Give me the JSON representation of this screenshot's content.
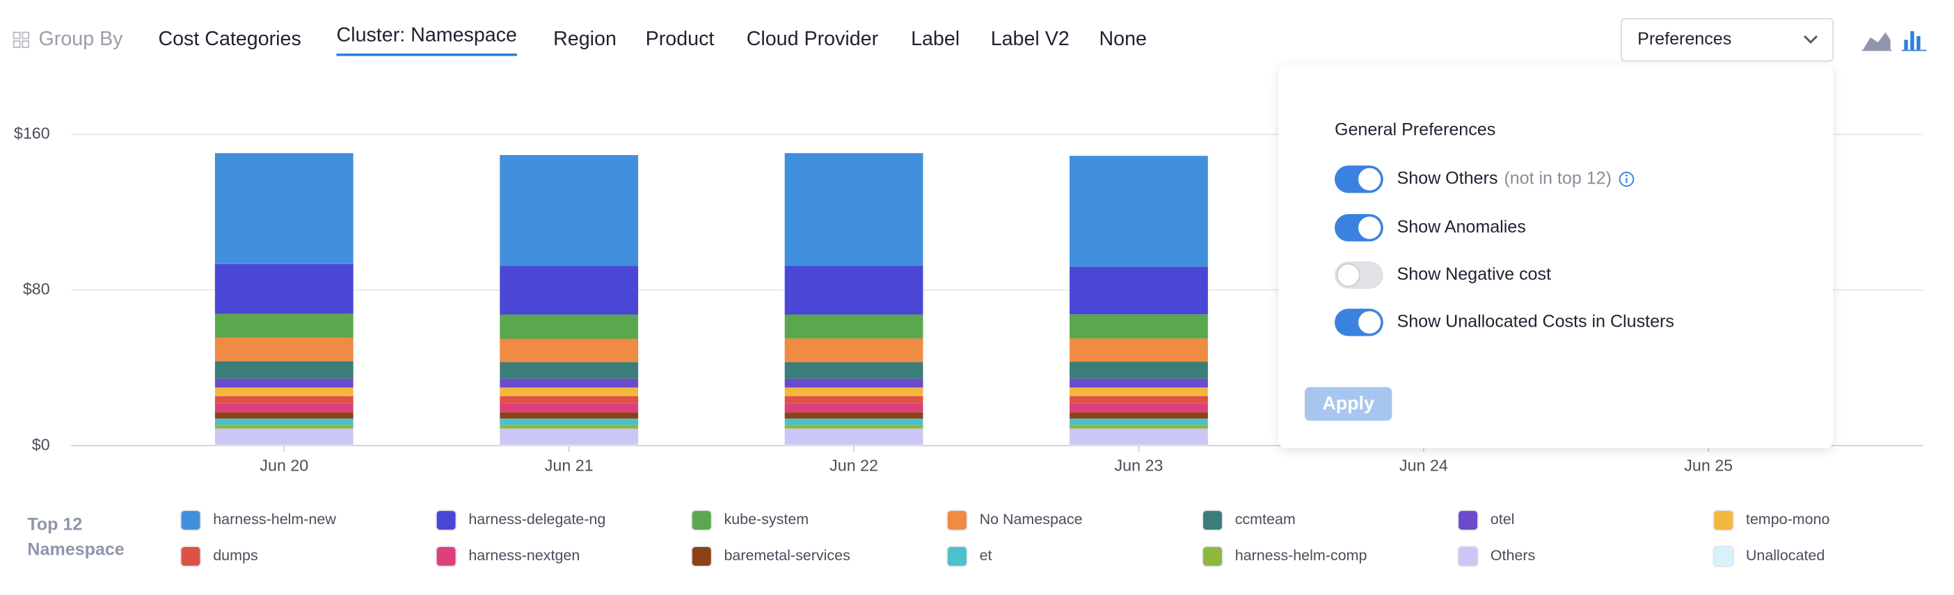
{
  "group_by_label": "Group By",
  "tabs": [
    "Cost Categories",
    "Cluster: Namespace",
    "Region",
    "Product",
    "Cloud Provider",
    "Label",
    "Label V2",
    "None"
  ],
  "active_tab": 1,
  "preferences": {
    "button": "Preferences",
    "title": "General Preferences",
    "toggles": [
      {
        "label": "Show Others",
        "note": "(not in top 12)",
        "on": true
      },
      {
        "label": "Show Anomalies",
        "on": true
      },
      {
        "label": "Show Negative cost",
        "on": false
      },
      {
        "label": "Show Unallocated Costs in Clusters",
        "on": true
      }
    ],
    "apply": "Apply"
  },
  "chart_data": {
    "type": "bar",
    "stacked": true,
    "categories": [
      "Jun 20",
      "Jun 21",
      "Jun 22",
      "Jun 23",
      "Jun 24",
      "Jun 25"
    ],
    "ylim": [
      0,
      160
    ],
    "yticks": [
      {
        "value": 0,
        "label": "$0"
      },
      {
        "value": 80,
        "label": "$80"
      },
      {
        "value": 160,
        "label": "$160"
      }
    ],
    "grid": true,
    "legend_title": "Top 12 Namespace",
    "series": [
      {
        "name": "harness-helm-new",
        "color": "#4190dd",
        "values": [
          57,
          57,
          58,
          57,
          null,
          null
        ]
      },
      {
        "name": "harness-delegate-ng",
        "color": "#4a47d6",
        "values": [
          25.6,
          25,
          25,
          24.5,
          null,
          null
        ]
      },
      {
        "name": "kube-system",
        "color": "#5aa74f",
        "values": [
          12.2,
          12.5,
          12.3,
          12.4,
          null,
          null
        ]
      },
      {
        "name": "No Namespace",
        "color": "#ef8b42",
        "values": [
          12.2,
          12,
          12.2,
          12,
          null,
          null
        ]
      },
      {
        "name": "ccmteam",
        "color": "#3b7d78",
        "values": [
          9,
          8.5,
          8.5,
          8.7,
          null,
          null
        ]
      },
      {
        "name": "otel",
        "color": "#6a4bcb",
        "values": [
          4.5,
          4.5,
          4.5,
          4.5,
          null,
          null
        ]
      },
      {
        "name": "tempo-mono",
        "color": "#f3b73f",
        "values": [
          4.5,
          4.5,
          4.5,
          4.5,
          null,
          null
        ]
      },
      {
        "name": "dumps",
        "color": "#dd5246",
        "values": [
          3.8,
          3.8,
          3.8,
          3.8,
          null,
          null
        ]
      },
      {
        "name": "harness-nextgen",
        "color": "#dd3f7c",
        "values": [
          4.5,
          4.5,
          4.5,
          4.5,
          null,
          null
        ]
      },
      {
        "name": "baremetal-services",
        "color": "#8a4216",
        "values": [
          3.2,
          3.2,
          3.2,
          3.2,
          null,
          null
        ]
      },
      {
        "name": "et",
        "color": "#4cc0cc",
        "values": [
          3.2,
          3.2,
          3.2,
          3.2,
          null,
          null
        ]
      },
      {
        "name": "harness-helm-comp",
        "color": "#8db83d",
        "values": [
          1.9,
          1.9,
          1.9,
          1.9,
          null,
          null
        ]
      },
      {
        "name": "Others",
        "color": "#cbc6f5",
        "values": [
          8.3,
          8.3,
          8.3,
          8.3,
          null,
          null
        ]
      },
      {
        "name": "Unallocated",
        "color": "#d9f1fb",
        "values": [
          0.5,
          0.5,
          0.5,
          0.5,
          null,
          null
        ]
      }
    ]
  }
}
